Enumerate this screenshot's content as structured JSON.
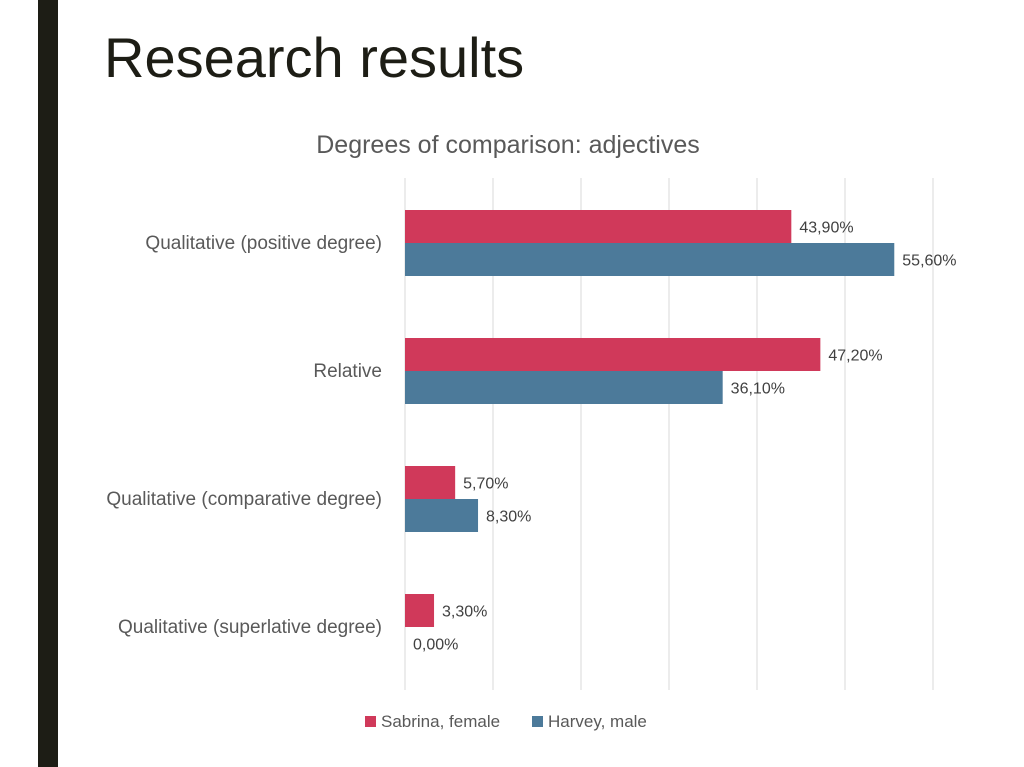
{
  "slide": {
    "title": "Research results"
  },
  "chart_data": {
    "type": "bar",
    "orientation": "horizontal",
    "title": "Degrees of comparison: adjectives",
    "categories": [
      "Qualitative (positive degree)",
      "Relative",
      "Qualitative (comparative degree)",
      "Qualitative (superlative degree)"
    ],
    "series": [
      {
        "name": "Sabrina, female",
        "color": "#d0395a",
        "values": [
          43.9,
          47.2,
          5.7,
          3.3
        ],
        "labels": [
          "43,90%",
          "47,20%",
          "5,70%",
          "3,30%"
        ]
      },
      {
        "name": "Harvey, male",
        "color": "#4c7a9a",
        "values": [
          55.6,
          36.1,
          8.3,
          0.0
        ],
        "labels": [
          "55,60%",
          "36,10%",
          "8,30%",
          "0,00%"
        ]
      }
    ],
    "xlim": [
      0,
      60
    ],
    "grid": true,
    "legend_position": "bottom"
  }
}
